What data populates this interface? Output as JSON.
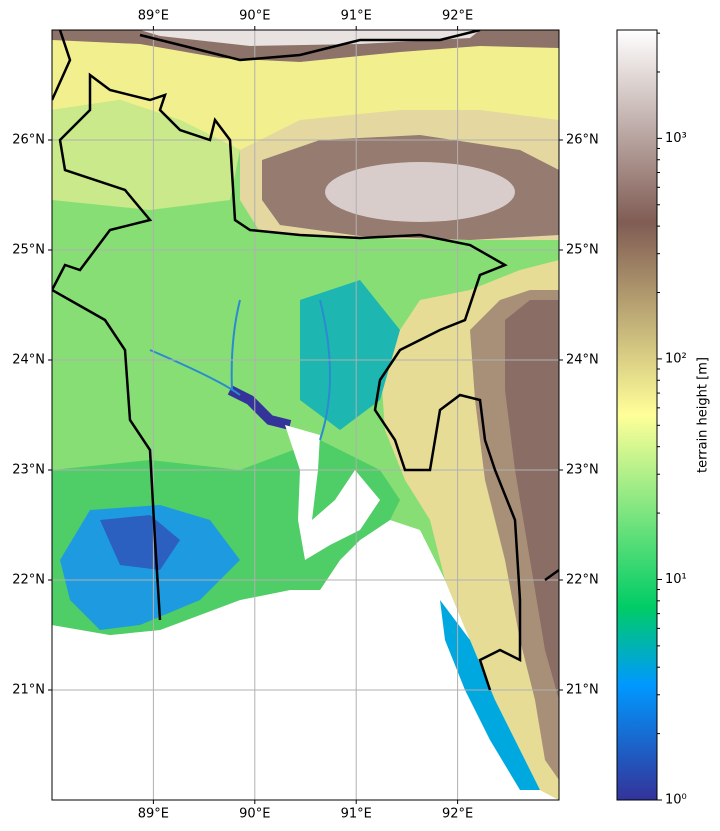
{
  "chart_data": {
    "type": "map",
    "xlim": [
      88,
      93
    ],
    "ylim": [
      20,
      27
    ],
    "xticks": [
      {
        "value": 89,
        "label": "89°E"
      },
      {
        "value": 90,
        "label": "90°E"
      },
      {
        "value": 91,
        "label": "91°E"
      },
      {
        "value": 92,
        "label": "92°E"
      }
    ],
    "yticks": [
      {
        "value": 21,
        "label": "21°N"
      },
      {
        "value": 22,
        "label": "22°N"
      },
      {
        "value": 23,
        "label": "23°N"
      },
      {
        "value": 24,
        "label": "24°N"
      },
      {
        "value": 25,
        "label": "25°N"
      },
      {
        "value": 26,
        "label": "26°N"
      }
    ],
    "grid": true,
    "colorbar": {
      "label": "terrain height [m]",
      "lim": [
        1,
        3100
      ],
      "scale": "log",
      "colormap": "terrain",
      "ticks": [
        {
          "value": 1,
          "label": "10⁰"
        },
        {
          "value": 10,
          "label": "10¹"
        },
        {
          "value": 100,
          "label": "10²"
        },
        {
          "value": 1000,
          "label": "10³"
        }
      ],
      "minor_ticks": [
        2,
        3,
        4,
        5,
        6,
        7,
        8,
        9,
        20,
        30,
        40,
        50,
        60,
        70,
        80,
        90,
        200,
        300,
        400,
        500,
        600,
        700,
        800,
        900,
        2000,
        3000
      ]
    }
  }
}
